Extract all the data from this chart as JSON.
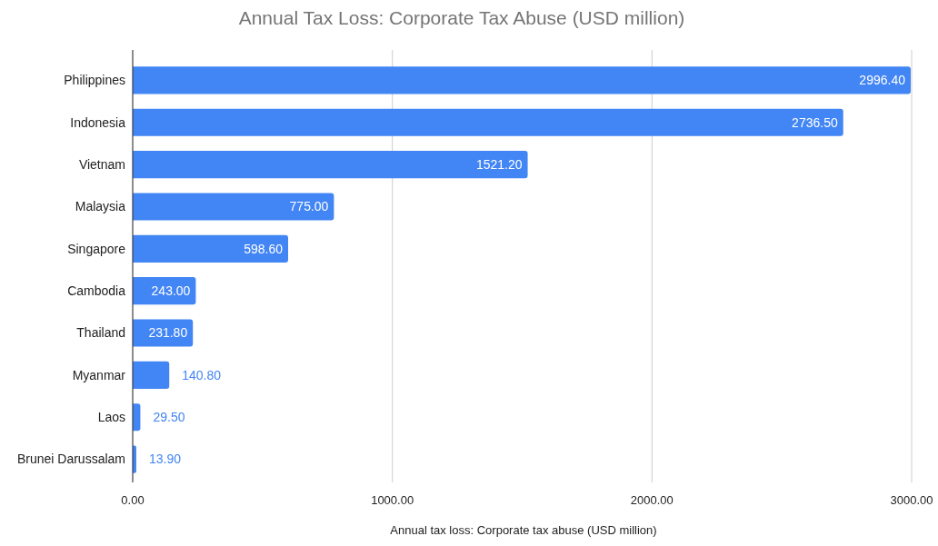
{
  "chart_data": {
    "type": "bar",
    "orientation": "horizontal",
    "title": "Annual Tax Loss: Corporate Tax Abuse (USD million)",
    "xlabel": "Annual tax loss: Corporate tax abuse (USD million)",
    "categories": [
      "Philippines",
      "Indonesia",
      "Vietnam",
      "Malaysia",
      "Singapore",
      "Cambodia",
      "Thailand",
      "Myanmar",
      "Laos",
      "Brunei Darussalam"
    ],
    "values": [
      2996.4,
      2736.5,
      1521.2,
      775,
      598.6,
      243,
      231.8,
      140.8,
      29.5,
      13.9
    ],
    "value_labels": [
      "2996.40",
      "2736.50",
      "1521.20",
      "775.00",
      "598.60",
      "243.00",
      "231.80",
      "140.80",
      "29.50",
      "13.90"
    ],
    "color": "#4285f4",
    "xlim": [
      0,
      3000
    ],
    "xticks": [
      {
        "value": 0,
        "label": "0.00"
      },
      {
        "value": 1000,
        "label": "1000.00"
      },
      {
        "value": 2000,
        "label": "2000.00"
      },
      {
        "value": 3000,
        "label": "3000.00"
      }
    ],
    "grid": "x"
  }
}
